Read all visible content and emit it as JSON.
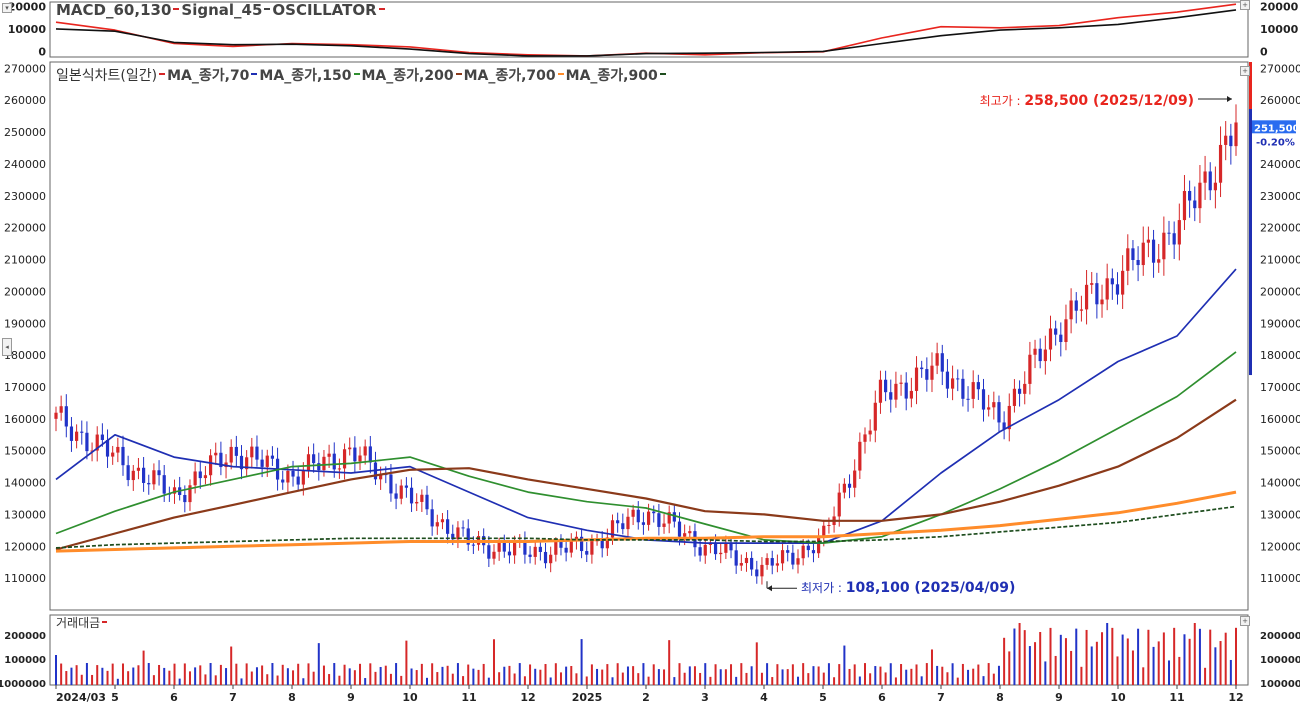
{
  "panels": {
    "macd": {
      "title_parts": [
        {
          "text": "MACD_60,130",
          "color": "#444444"
        },
        {
          "text": "Signal_45",
          "color": "#444444"
        },
        {
          "text": "OSCILLATOR",
          "color": "#444444"
        }
      ],
      "marker_colors": [
        "#d62728",
        "#444444",
        "#d62728"
      ],
      "ticks": [
        20000,
        10000,
        0
      ],
      "tick_labels": [
        "20000",
        "10000",
        "0"
      ],
      "right_tick_labels": [
        "20000",
        "10000",
        "0"
      ]
    },
    "price": {
      "title": "일본식차트(일간)",
      "ma_legend": [
        {
          "text": "MA_종가,70",
          "color": "#1f2fb3"
        },
        {
          "text": "MA_종가,150",
          "color": "#2f8f2f"
        },
        {
          "text": "MA_종가,200",
          "color": "#8b3a1a"
        },
        {
          "text": "MA_종가,700",
          "color": "#ff8c2a"
        },
        {
          "text": "MA_종가,900",
          "color": "#1e4d1e"
        }
      ],
      "y_ticks": [
        270000,
        260000,
        250000,
        240000,
        230000,
        220000,
        210000,
        200000,
        190000,
        180000,
        170000,
        160000,
        150000,
        140000,
        130000,
        120000,
        110000
      ],
      "y_tick_labels": [
        "270000",
        "260000",
        "250000",
        "240000",
        "230000",
        "220000",
        "210000",
        "200000",
        "190000",
        "180000",
        "170000",
        "160000",
        "150000",
        "140000",
        "130000",
        "120000",
        "110000"
      ],
      "y_range": [
        100000,
        272000
      ],
      "right_y_tick_labels": [
        "270000",
        "260000",
        "240000",
        "230000",
        "220000",
        "210000",
        "200000",
        "190000",
        "180000",
        "170000",
        "160000",
        "150000",
        "140000",
        "130000",
        "120000",
        "110000"
      ],
      "current_price_label": "251,500",
      "current_change_label": "-0.20%",
      "high_annotation": {
        "label": "최고가 :",
        "value": "258,500 (2025/12/09)",
        "color": "#e8251e"
      },
      "low_annotation": {
        "label": "최저가 :",
        "value": "108,100 (2025/04/09)",
        "color": "#1f2fb3"
      }
    },
    "volume": {
      "title": "거래대금",
      "tick_labels": [
        "200000",
        "100000",
        "1000000"
      ],
      "right_tick_labels": [
        "200000",
        "100000",
        "100000"
      ]
    }
  },
  "x_axis": {
    "labels": [
      "2024/03",
      "5",
      "6",
      "7",
      "8",
      "9",
      "10",
      "11",
      "12",
      "2025",
      "2",
      "3",
      "4",
      "5",
      "6",
      "7",
      "8",
      "9",
      "10",
      "11",
      "12"
    ]
  },
  "colors": {
    "up": "#d62728",
    "down": "#2133c8",
    "ma70": "#1f2fb3",
    "ma150": "#2f8f2f",
    "ma200": "#8b3a1a",
    "ma700": "#ff8c2a",
    "ma900": "#1e4d1e",
    "macd": "#111111",
    "signal": "#e8251e"
  },
  "chart_data": {
    "type": "line",
    "title": "일본식차트(일간)",
    "y_range": [
      100000,
      272000
    ],
    "x": [
      "2024/03",
      "2024/05",
      "2024/06",
      "2024/07",
      "2024/08",
      "2024/09",
      "2024/10",
      "2024/11",
      "2024/12",
      "2025/01",
      "2025/02",
      "2025/03",
      "2025/04",
      "2025/05",
      "2025/06",
      "2025/07",
      "2025/08",
      "2025/09",
      "2025/10",
      "2025/11",
      "2025/12"
    ],
    "price_close": [
      160000,
      148000,
      136000,
      150000,
      142000,
      150000,
      135000,
      121000,
      118000,
      120000,
      131000,
      120000,
      113000,
      122000,
      168000,
      176000,
      160000,
      190000,
      205000,
      220000,
      251500
    ],
    "series": [
      {
        "name": "MA_종가,70",
        "values": [
          141000,
          155000,
          148000,
          145000,
          144000,
          143000,
          145000,
          137000,
          129000,
          125000,
          122000,
          121000,
          121000,
          121000,
          128000,
          143000,
          156000,
          166000,
          178000,
          186000,
          207000
        ]
      },
      {
        "name": "MA_종가,150",
        "values": [
          124000,
          131000,
          137000,
          141000,
          145000,
          146000,
          148000,
          142000,
          137000,
          134000,
          132000,
          127000,
          122000,
          121000,
          123000,
          130000,
          138000,
          147000,
          157000,
          167000,
          181000
        ]
      },
      {
        "name": "MA_종가,200",
        "values": [
          119000,
          124000,
          129000,
          133000,
          137000,
          141000,
          144000,
          144500,
          141000,
          138000,
          135000,
          131000,
          130000,
          128000,
          128000,
          130000,
          134000,
          139000,
          145000,
          154000,
          166000
        ]
      },
      {
        "name": "MA_종가,700",
        "values": [
          118500,
          119000,
          119500,
          120000,
          120500,
          121000,
          121500,
          121500,
          121500,
          122000,
          122500,
          122500,
          123000,
          123000,
          124000,
          125000,
          126500,
          128500,
          130500,
          133500,
          137000
        ]
      },
      {
        "name": "MA_종가,900",
        "values": [
          119500,
          120500,
          121000,
          121500,
          122000,
          122500,
          122500,
          122500,
          122500,
          122000,
          122000,
          122000,
          121500,
          121500,
          122000,
          123000,
          124500,
          126000,
          127500,
          130000,
          132500
        ]
      }
    ],
    "high": {
      "value": 258500,
      "date": "2025/12/09"
    },
    "low": {
      "value": 108100,
      "date": "2025/04/09"
    },
    "macd_panel": {
      "ylim": [
        -2500,
        22000
      ],
      "macd": [
        10000,
        9000,
        4000,
        3000,
        3200,
        2500,
        1000,
        -1000,
        -2000,
        -2000,
        -1000,
        -800,
        -500,
        0,
        3500,
        7000,
        9500,
        10500,
        12000,
        15000,
        18500
      ],
      "signal": [
        13000,
        9500,
        3500,
        2200,
        3500,
        3000,
        2000,
        -500,
        -1500,
        -2000,
        -800,
        -1500,
        -600,
        -200,
        6000,
        11000,
        10500,
        11500,
        15000,
        17500,
        21000
      ]
    }
  }
}
